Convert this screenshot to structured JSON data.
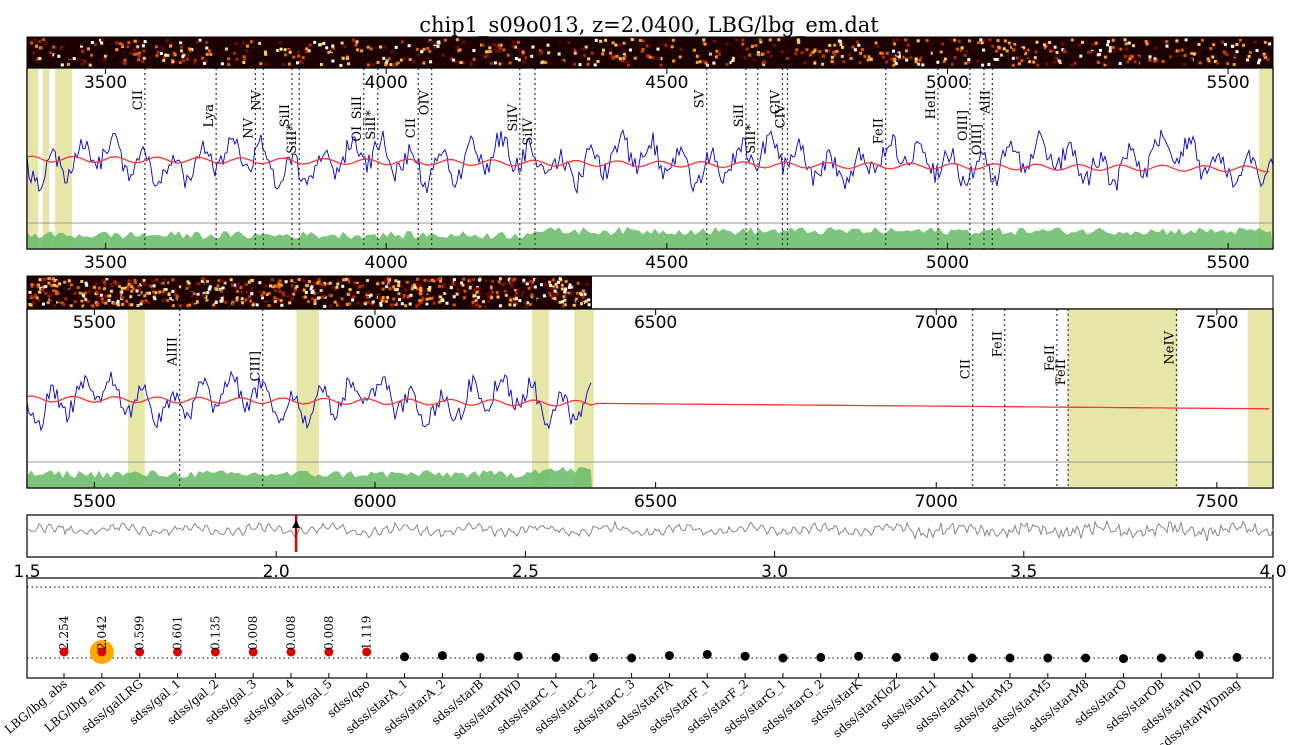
{
  "title": "chip1_s09o013, z=2.0400, LBG/lbg_em.dat",
  "colors": {
    "flux": "#0000cc",
    "model": "#ff3333",
    "noise": "#66bb66",
    "mask": "#e6e6a8",
    "lines": "#333333",
    "highlight": "#ffaa00",
    "chi_trace": "#888888",
    "z_marker": "#dd0000"
  },
  "chart_data": [
    {
      "type": "line",
      "panel": "spectrum-1",
      "xlim": [
        3360,
        5580
      ],
      "xticks": [
        3500,
        4000,
        4500,
        5000,
        5500
      ],
      "lines": [
        {
          "label": "CII",
          "wave": 3570
        },
        {
          "label": "Lya",
          "wave": 3697
        },
        {
          "label": "NV",
          "wave": 3767
        },
        {
          "label": "NV",
          "wave": 3781
        },
        {
          "label": "SiII",
          "wave": 3832
        },
        {
          "label": "SiII*",
          "wave": 3845
        },
        {
          "label": "OI_SiII",
          "wave": 3960
        },
        {
          "label": "SiII*",
          "wave": 3985
        },
        {
          "label": "CII",
          "wave": 4057
        },
        {
          "label": "OIV",
          "wave": 4081
        },
        {
          "label": "SiIV",
          "wave": 4238
        },
        {
          "label": "SiIV",
          "wave": 4265
        },
        {
          "label": "SV",
          "wave": 4571
        },
        {
          "label": "SiII",
          "wave": 4641
        },
        {
          "label": "SiII*",
          "wave": 4662
        },
        {
          "label": "CIV",
          "wave": 4706
        },
        {
          "label": "CIV",
          "wave": 4715
        },
        {
          "label": "FeII",
          "wave": 4890
        },
        {
          "label": "HeII",
          "wave": 4983
        },
        {
          "label": "OIII]",
          "wave": 5040
        },
        {
          "label": "OIII]",
          "wave": 5065
        },
        {
          "label": "AlII",
          "wave": 5080
        }
      ],
      "masks": [
        [
          3360,
          3380
        ],
        [
          3388,
          3400
        ],
        [
          3410,
          3440
        ],
        [
          5555,
          5580
        ]
      ]
    },
    {
      "type": "line",
      "panel": "spectrum-2",
      "xlim": [
        5380,
        7600
      ],
      "xticks": [
        5500,
        6000,
        6500,
        7000,
        7500
      ],
      "lines": [
        {
          "label": "AlIII",
          "wave": 5652
        },
        {
          "label": "CIII]",
          "wave": 5800
        },
        {
          "label": "CII",
          "wave": 7065
        },
        {
          "label": "FeII",
          "wave": 7122
        },
        {
          "label": "FeII",
          "wave": 7215
        },
        {
          "label": "FeII",
          "wave": 7235
        },
        {
          "label": "NeIV",
          "wave": 7428
        }
      ],
      "masks": [
        [
          5560,
          5590
        ],
        [
          5860,
          5900
        ],
        [
          6280,
          6310
        ],
        [
          6355,
          6390
        ],
        [
          7235,
          7430
        ],
        [
          7555,
          7600
        ]
      ]
    },
    {
      "type": "line",
      "panel": "redshift-chi2",
      "xlim": [
        1.5,
        4.0
      ],
      "xticks": [
        "1.5",
        "2.0",
        "2.5",
        "3.0",
        "3.5",
        "4.0"
      ],
      "z_best": 2.04
    },
    {
      "type": "scatter",
      "panel": "template-fits",
      "categories": [
        "LBG/lbg_abs",
        "LBG/lbg_em",
        "sdss/galLRG",
        "sdss/gal_1",
        "sdss/gal_2",
        "sdss/gal_3",
        "sdss/gal_4",
        "sdss/gal_5",
        "sdss/qso",
        "sdss/starA_1",
        "sdss/starA_2",
        "sdss/starB",
        "sdss/starBWD",
        "sdss/starC_1",
        "sdss/starC_2",
        "sdss/starC_3",
        "sdss/starFA",
        "sdss/starF_1",
        "sdss/starF_2",
        "sdss/starG_1",
        "sdss/starG_2",
        "sdss/starK",
        "sdss/starKloZ",
        "sdss/starL1",
        "sdss/starM1",
        "sdss/starM3",
        "sdss/starM5",
        "sdss/starM8",
        "sdss/starO",
        "sdss/starOB",
        "sdss/starWD",
        "sdss/starWDmag"
      ],
      "values": [
        0.0,
        0.0,
        0.0,
        0.0,
        0.0,
        0.0,
        0.0,
        0.0,
        0.0,
        0.2,
        0.4,
        0.1,
        0.3,
        0.1,
        0.1,
        0.0,
        0.4,
        0.6,
        0.3,
        0.0,
        0.1,
        0.3,
        0.1,
        0.2,
        0.0,
        0.0,
        0.0,
        0.0,
        -0.1,
        0.0,
        0.5,
        0.1
      ],
      "labels": [
        "2.254",
        "2.042",
        "0.599",
        "0.601",
        "0.135",
        "0.008",
        "0.008",
        "0.008",
        "1.119",
        "",
        "",
        "",
        "",
        "",
        "",
        "",
        "",
        "",
        "",
        "",
        "",
        "",
        "",
        "",
        "",
        "",
        "",
        "",
        "",
        "",
        "",
        ""
      ],
      "selected_index": 1
    }
  ]
}
